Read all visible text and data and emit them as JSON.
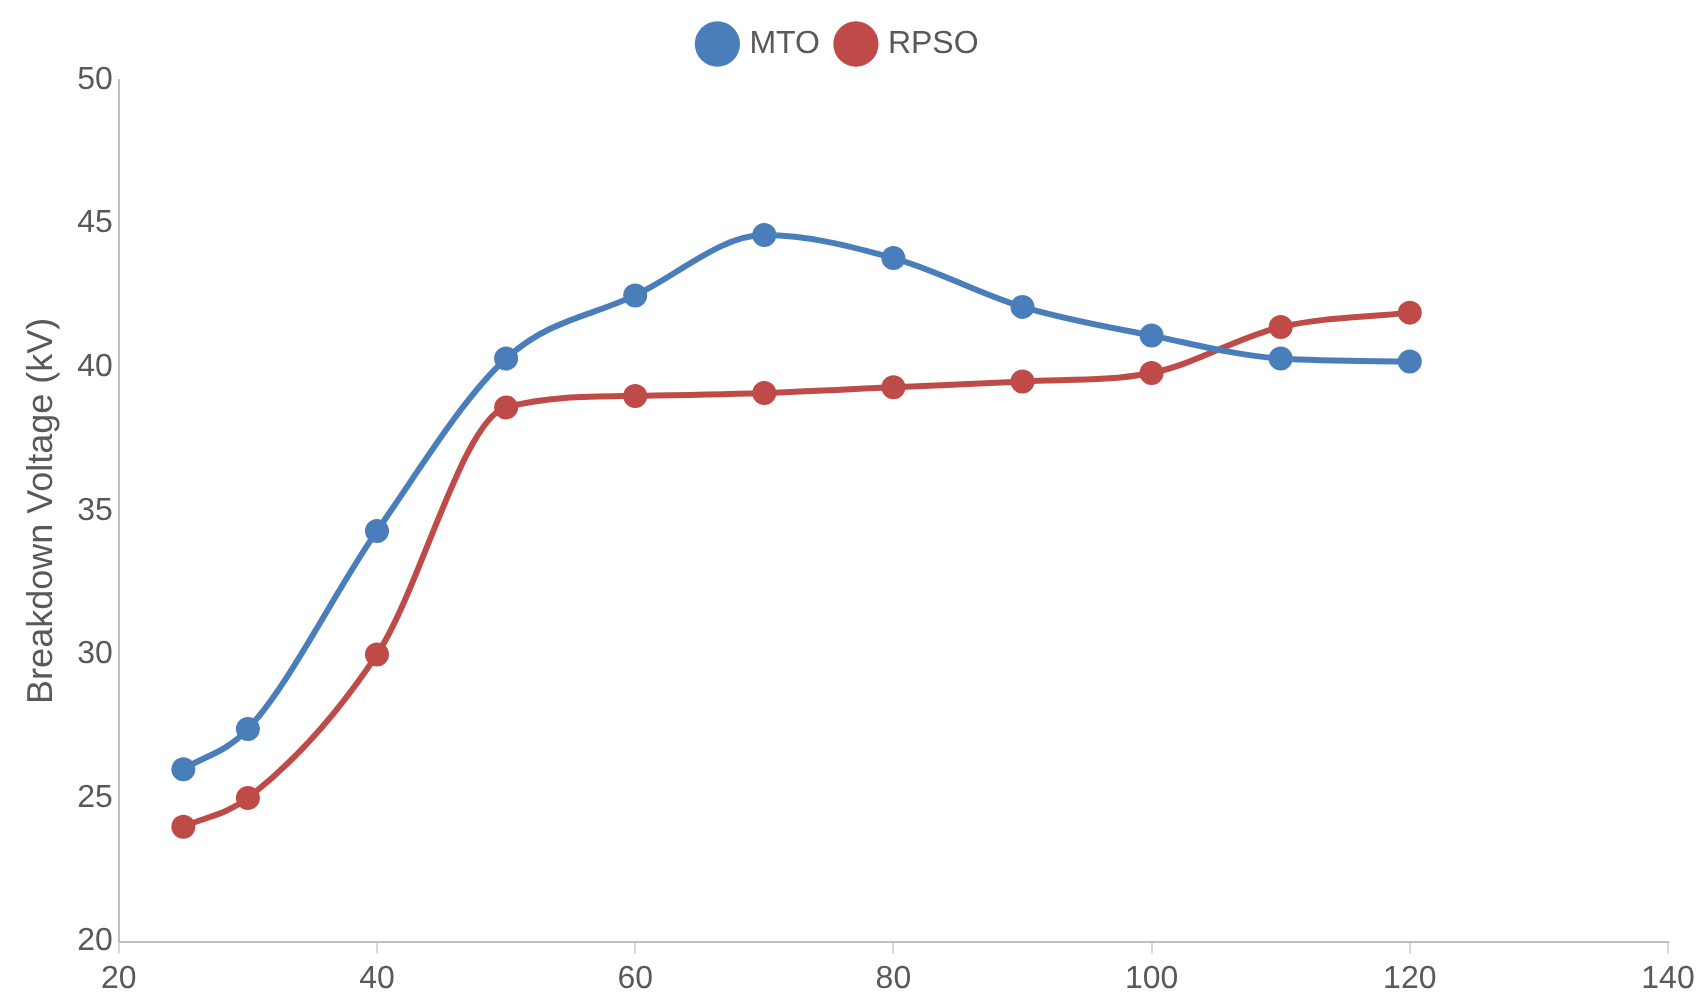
{
  "chart_data": {
    "type": "line",
    "ylabel": "Breakdown Voltage (kV)",
    "x": [
      25,
      30,
      40,
      50,
      60,
      70,
      80,
      90,
      100,
      110,
      120
    ],
    "series": [
      {
        "name": "MTO",
        "color": "#4a7ebb",
        "values": [
          26.0,
          27.4,
          34.3,
          40.3,
          42.5,
          44.6,
          43.8,
          42.1,
          41.1,
          40.3,
          40.2
        ]
      },
      {
        "name": "RPSO",
        "color": "#be4b48",
        "values": [
          24.0,
          25.0,
          30.0,
          38.6,
          39.0,
          39.1,
          39.3,
          39.5,
          39.8,
          41.4,
          41.9
        ]
      }
    ],
    "xlim": [
      20,
      140
    ],
    "xticks": [
      20,
      40,
      60,
      80,
      100,
      120,
      140
    ],
    "ylim": [
      20,
      50
    ],
    "yticks": [
      20,
      25,
      30,
      35,
      40,
      45,
      50
    ],
    "grid": false,
    "legend": "top",
    "marker": "circle",
    "line_style": "solid"
  }
}
